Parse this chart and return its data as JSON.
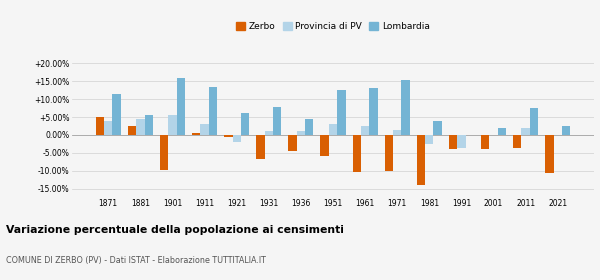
{
  "years": [
    1871,
    1881,
    1901,
    1911,
    1921,
    1931,
    1936,
    1951,
    1961,
    1971,
    1981,
    1991,
    2001,
    2011,
    2021
  ],
  "zerbo": [
    5.0,
    2.5,
    -9.8,
    0.5,
    -0.5,
    -6.8,
    -4.5,
    -5.8,
    -10.2,
    -10.0,
    -13.8,
    -4.0,
    -4.0,
    -3.5,
    -10.5
  ],
  "provincia": [
    4.0,
    4.5,
    5.5,
    3.0,
    -2.0,
    1.0,
    1.0,
    3.0,
    2.5,
    1.5,
    -2.5,
    -3.5,
    0.0,
    2.0,
    0.0
  ],
  "lombardia": [
    11.5,
    5.5,
    15.8,
    13.5,
    6.0,
    7.8,
    4.5,
    12.5,
    13.0,
    15.2,
    4.0,
    0.0,
    2.0,
    7.5,
    2.5
  ],
  "zerbo_color": "#d95f02",
  "provincia_color": "#b3d4e8",
  "lombardia_color": "#74b4d4",
  "title": "Variazione percentuale della popolazione ai censimenti",
  "subtitle": "COMUNE DI ZERBO (PV) - Dati ISTAT - Elaborazione TUTTITALIA.IT",
  "ylim": [
    -17,
    22
  ],
  "yticks": [
    -15,
    -10,
    -5,
    0,
    5,
    10,
    15,
    20
  ],
  "ytick_labels": [
    "-15.00%",
    "-10.00%",
    "-5.00%",
    "0.00%",
    "+5.00%",
    "+10.00%",
    "+15.00%",
    "+20.00%"
  ],
  "background_color": "#f5f5f5",
  "grid_color": "#d0d0d0"
}
